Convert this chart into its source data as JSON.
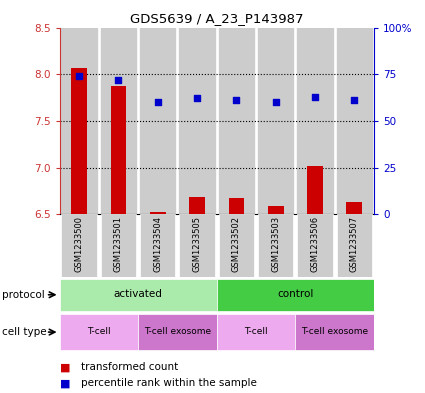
{
  "title": "GDS5639 / A_23_P143987",
  "samples": [
    "GSM1233500",
    "GSM1233501",
    "GSM1233504",
    "GSM1233505",
    "GSM1233502",
    "GSM1233503",
    "GSM1233506",
    "GSM1233507"
  ],
  "transformed_count": [
    8.07,
    7.87,
    6.52,
    6.68,
    6.67,
    6.59,
    7.02,
    6.63
  ],
  "percentile_rank": [
    74,
    72,
    60,
    62,
    61,
    60,
    63,
    61
  ],
  "ylim_left": [
    6.5,
    8.5
  ],
  "ylim_right": [
    0,
    100
  ],
  "yticks_left": [
    6.5,
    7.0,
    7.5,
    8.0,
    8.5
  ],
  "yticks_right": [
    0,
    25,
    50,
    75,
    100
  ],
  "bar_color": "#cc0000",
  "dot_color": "#0000cc",
  "bar_bottom": 6.5,
  "protocol_groups": [
    {
      "label": "activated",
      "start": 0,
      "end": 4,
      "color": "#aaeaaa"
    },
    {
      "label": "control",
      "start": 4,
      "end": 8,
      "color": "#44cc44"
    }
  ],
  "cell_type_groups": [
    {
      "label": "T-cell",
      "start": 0,
      "end": 2,
      "color": "#eeaaee"
    },
    {
      "label": "T-cell exosome",
      "start": 2,
      "end": 4,
      "color": "#cc77cc"
    },
    {
      "label": "T-cell",
      "start": 4,
      "end": 6,
      "color": "#eeaaee"
    },
    {
      "label": "T-cell exosome",
      "start": 6,
      "end": 8,
      "color": "#cc77cc"
    }
  ],
  "label_color_red": "#cc3333",
  "label_color_blue": "#0000cc",
  "sample_area_color": "#cccccc",
  "grid_yticks": [
    7.0,
    7.5,
    8.0
  ]
}
